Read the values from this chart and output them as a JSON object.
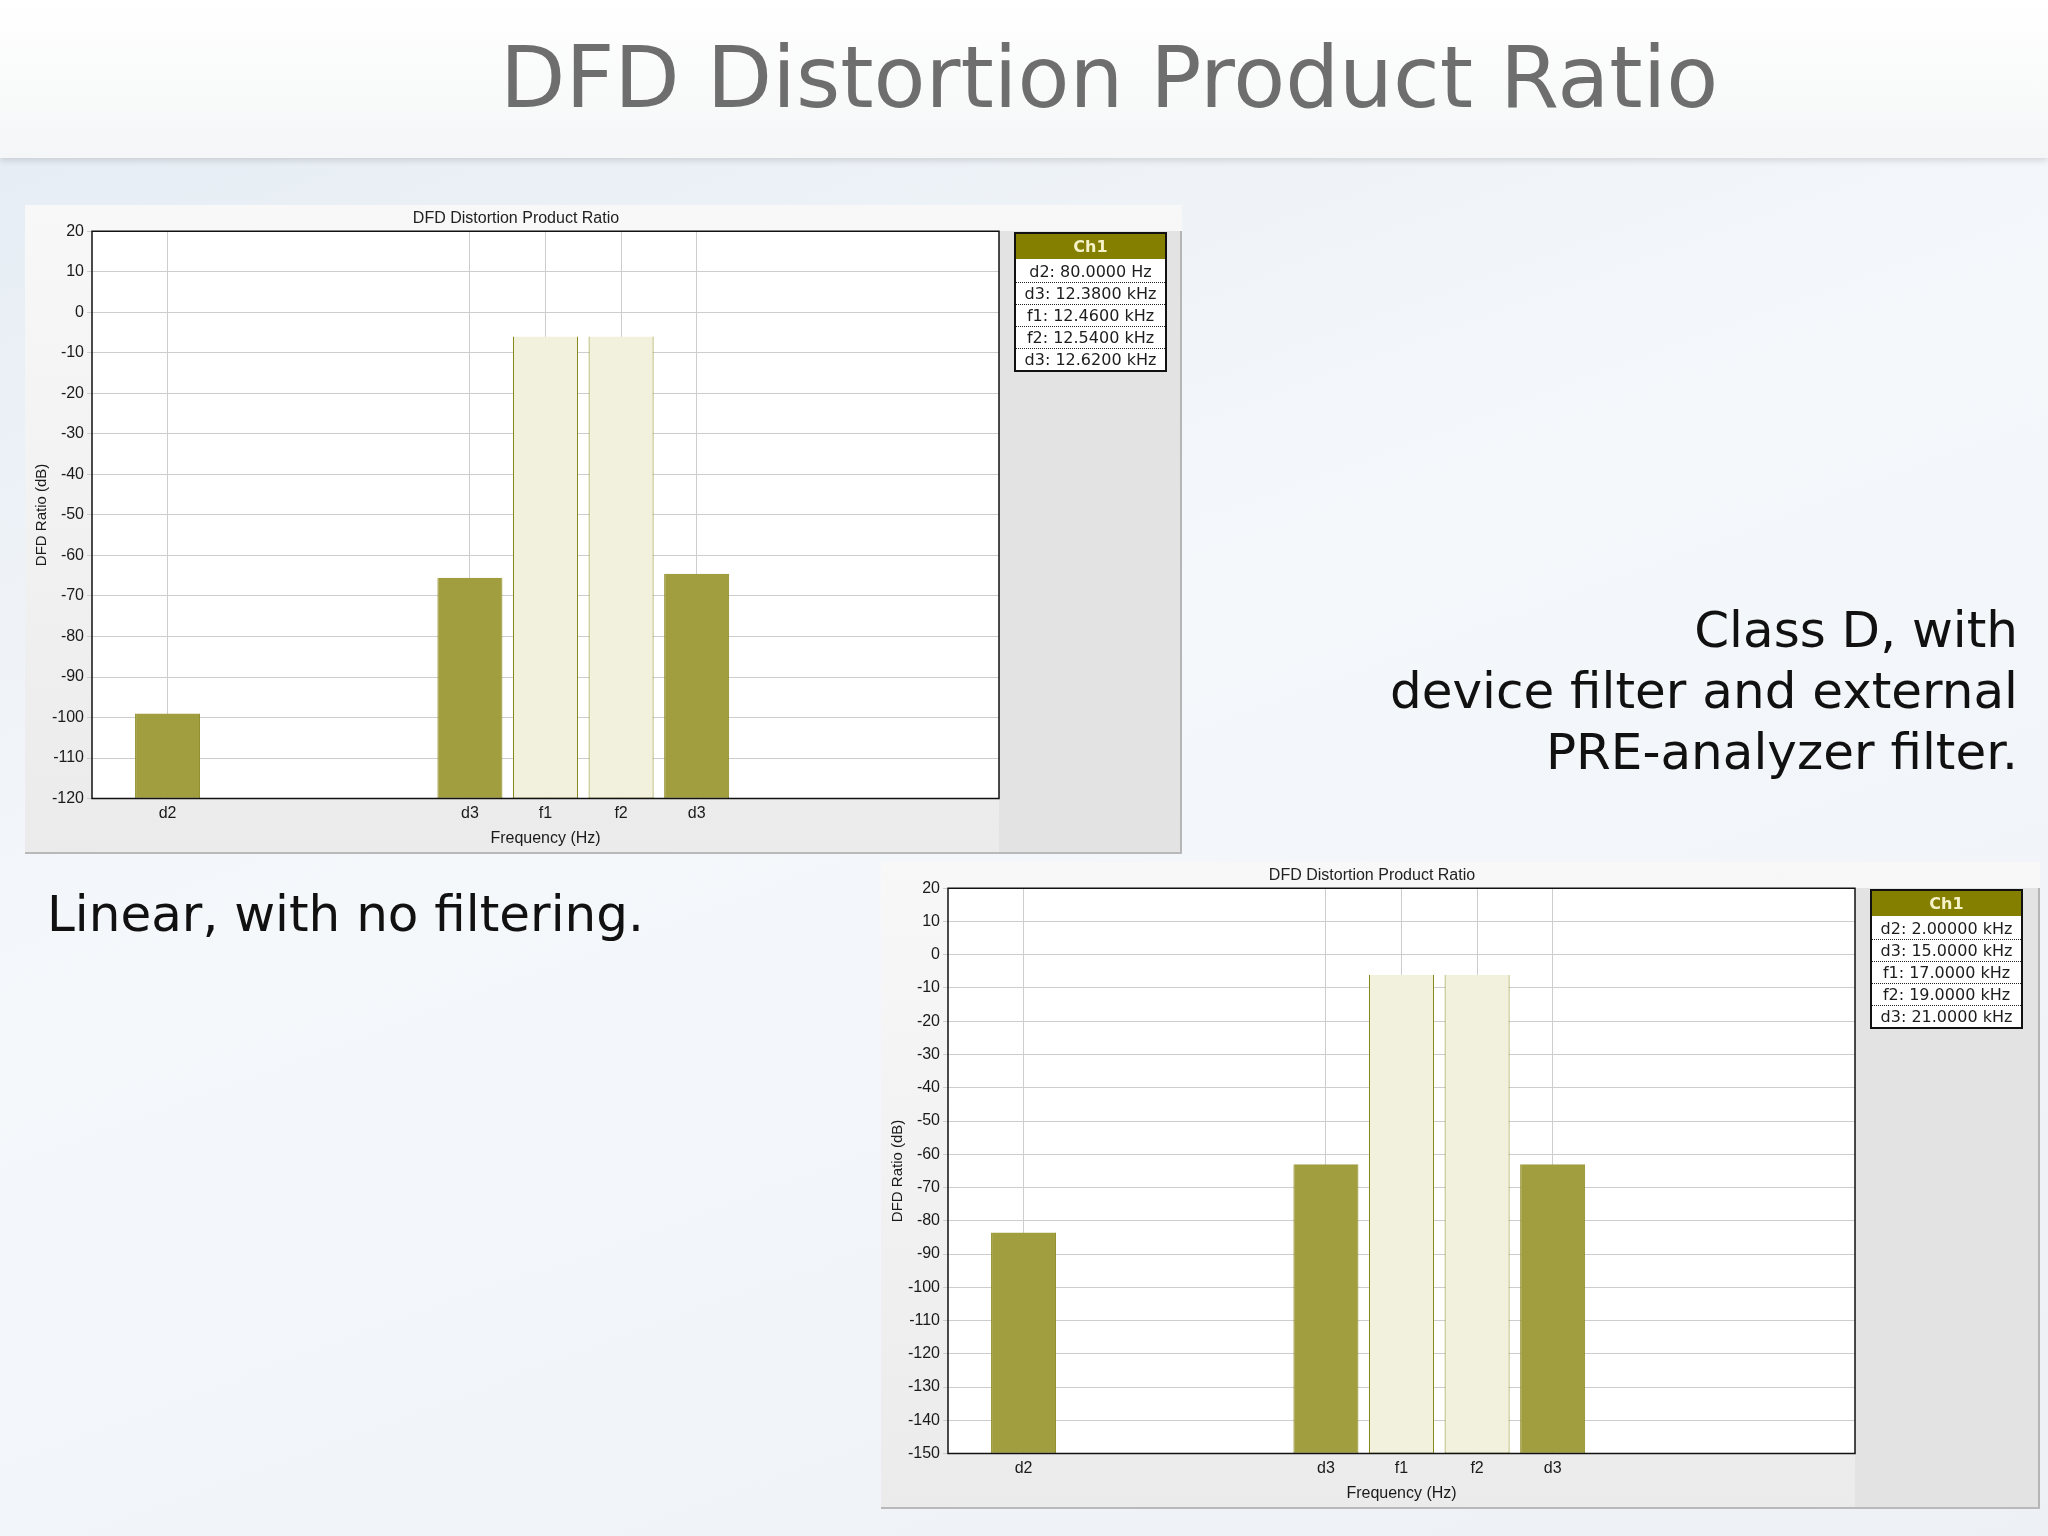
{
  "chart_data": [
    {
      "type": "other",
      "title": "DFD Distortion Product Ratio"
    },
    {
      "type": "bar",
      "title": "DFD Distortion Product Ratio",
      "xlabel": "Frequency (Hz)",
      "ylabel": "DFD Ratio (dB)",
      "categories": [
        null,
        "d2",
        null,
        null,
        null,
        "d3",
        "f1",
        "f2",
        "d3",
        null,
        null,
        null,
        null
      ],
      "values": [
        null,
        21,
        null,
        null,
        null,
        54.5,
        114,
        114,
        55.5,
        null,
        null,
        null,
        null
      ],
      "base": [
        null,
        -120,
        null,
        null,
        null,
        -120,
        -120,
        -120,
        -120,
        null,
        null,
        null,
        null
      ],
      "colors": [
        null,
        "#a19e40",
        null,
        null,
        null,
        "#a19e40",
        "#f2f1dd",
        "#f2f1dd",
        "#a19e40",
        null,
        null,
        null,
        null
      ],
      "ylim": [
        -120,
        20
      ],
      "yticks": [
        -120,
        -110,
        -100,
        -90,
        -80,
        -70,
        -60,
        -50,
        -40,
        -30,
        -20,
        -10,
        0,
        10,
        20
      ],
      "grid": true,
      "legend_title": "Ch1",
      "annotations": [
        "Linear, with no filtering.",
        "d2: 80.0000 Hz",
        "d3: 12.3800 kHz",
        "f1: 12.4600 kHz",
        "f2: 12.5400 kHz",
        "d3: 12.6200 kHz"
      ]
    },
    {
      "type": "bar",
      "title": "DFD Distortion Product Ratio",
      "xlabel": "Frequency (Hz)",
      "ylabel": "DFD Ratio (dB)",
      "categories": [
        null,
        "d2",
        null,
        null,
        null,
        "d3",
        "f1",
        "f2",
        "d3",
        null,
        null,
        null,
        null
      ],
      "values": [
        null,
        66.5,
        null,
        null,
        null,
        87,
        144,
        144,
        87,
        null,
        null,
        null,
        null
      ],
      "base": [
        null,
        -150,
        null,
        null,
        null,
        -150,
        -150,
        -150,
        -150,
        null,
        null,
        null,
        null
      ],
      "colors": [
        null,
        "#a19e40",
        null,
        null,
        null,
        "#a19e40",
        "#f2f1dd",
        "#f2f1dd",
        "#a19e40",
        null,
        null,
        null,
        null
      ],
      "ylim": [
        -150,
        20
      ],
      "yticks": [
        -150,
        -140,
        -130,
        -120,
        -110,
        -100,
        -90,
        -80,
        -70,
        -60,
        -50,
        -40,
        -30,
        -20,
        -10,
        0,
        10,
        20
      ],
      "grid": true,
      "legend_title": "Ch1",
      "annotations": [
        "Class D, with\ndevice filter and external\nPRE-analyzer filter.",
        "d2: 2.00000 kHz",
        "d3: 15.0000 kHz",
        "f1: 17.0000 kHz",
        "f2: 19.0000 kHz",
        "d3: 21.0000 kHz"
      ]
    }
  ]
}
